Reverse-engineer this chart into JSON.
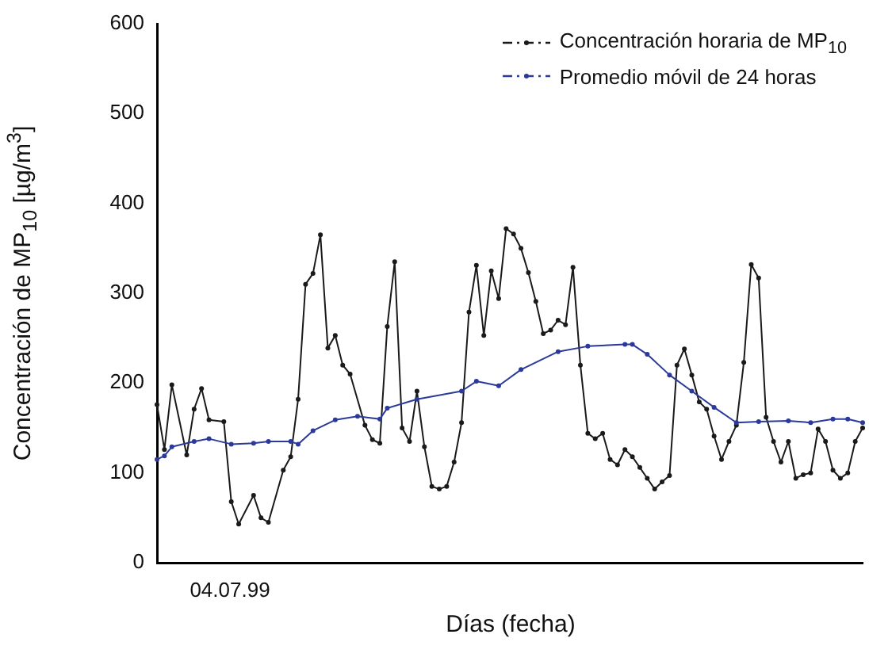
{
  "chart_data": {
    "type": "line",
    "xlabel": "Días (fecha)",
    "ylabel": "Concentración de MP$_{10}$ [µg/m$^{3}$]",
    "annotations": [
      "04.07.99"
    ],
    "categories": [
      null,
      null,
      null,
      null,
      null,
      null,
      null,
      null,
      null,
      null,
      null,
      null,
      null,
      null,
      null,
      null,
      null,
      null,
      null,
      null,
      null,
      null,
      null,
      null,
      null,
      null,
      null,
      null,
      null,
      null,
      null,
      null,
      null,
      null,
      null,
      null,
      null,
      null,
      null,
      null,
      null,
      null,
      null,
      null,
      null,
      null,
      null,
      null,
      null,
      null,
      null,
      null,
      null,
      null,
      null,
      null,
      null,
      null,
      null,
      null,
      null,
      null,
      null,
      null,
      null,
      null,
      null,
      null,
      null,
      null,
      null,
      null,
      null,
      null,
      null,
      null,
      null,
      null,
      null,
      null,
      null,
      null,
      null,
      null,
      null,
      null,
      null,
      null,
      null,
      null,
      null,
      null,
      null,
      null,
      null,
      null
    ],
    "ylim": [
      0,
      600
    ],
    "yticks": [
      0,
      100,
      200,
      300,
      400,
      500,
      600
    ],
    "grid": false,
    "legend": "top right",
    "marker": "circle",
    "line_style": "solid",
    "series": [
      {
        "name": "Concentración horaria de MP$_{10}$",
        "color": "#1a1a1a",
        "values": [
          176,
          126,
          198,
          null,
          120,
          171,
          194,
          159,
          null,
          157,
          68,
          43,
          null,
          75,
          50,
          45,
          null,
          103,
          118,
          182,
          310,
          322,
          365,
          239,
          253,
          220,
          210,
          null,
          153,
          137,
          133,
          263,
          335,
          150,
          135,
          191,
          129,
          85,
          82,
          85,
          112,
          156,
          279,
          331,
          253,
          325,
          294,
          372,
          366,
          350,
          323,
          291,
          255,
          259,
          270,
          265,
          329,
          220,
          144,
          138,
          144,
          115,
          109,
          126,
          118,
          106,
          94,
          82,
          90,
          97,
          220,
          238,
          209,
          179,
          171,
          141,
          115,
          135,
          153,
          223,
          332,
          317,
          162,
          135,
          112,
          135,
          94,
          98,
          100,
          149,
          135,
          103,
          94,
          100,
          135,
          150
        ]
      },
      {
        "name": "Promedio móvil de 24 horas",
        "color": "#2b3a9a",
        "values": [
          115,
          119,
          129,
          null,
          null,
          135,
          null,
          138,
          null,
          null,
          132,
          null,
          null,
          133,
          null,
          135,
          null,
          null,
          135,
          132,
          null,
          147,
          null,
          null,
          159,
          null,
          null,
          163,
          null,
          null,
          160,
          172,
          null,
          null,
          null,
          182,
          null,
          null,
          null,
          null,
          null,
          191,
          null,
          202,
          null,
          null,
          197,
          null,
          null,
          215,
          null,
          null,
          null,
          null,
          235,
          null,
          null,
          null,
          241,
          null,
          null,
          null,
          null,
          243,
          243,
          null,
          232,
          null,
          null,
          209,
          null,
          null,
          191,
          null,
          null,
          173,
          null,
          null,
          156,
          null,
          null,
          157,
          null,
          null,
          null,
          158,
          null,
          null,
          156,
          null,
          null,
          160,
          null,
          160,
          null,
          156
        ]
      }
    ]
  }
}
